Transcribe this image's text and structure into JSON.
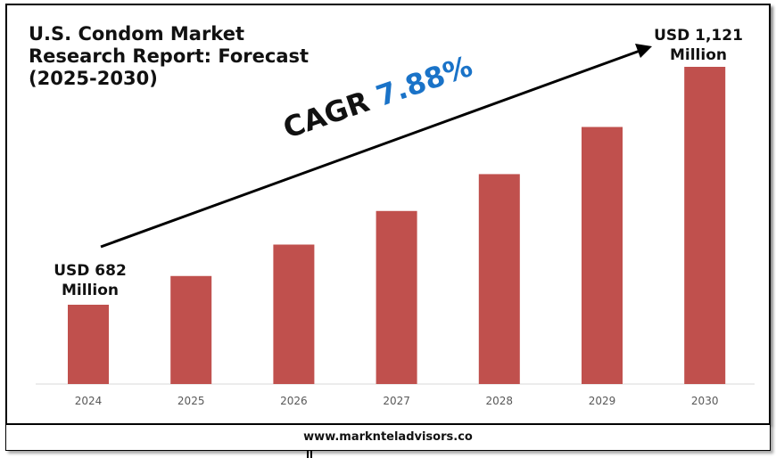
{
  "title": "U.S. Condom Market Research Report: Forecast (2025-2030)",
  "start_annotation": "USD 682 Million",
  "end_annotation": "USD 1,121 Million",
  "cagr_label": "CAGR",
  "cagr_value": "7.88%",
  "footer": "www.marknteladvisors.co",
  "colors": {
    "bar": "#c0504d",
    "cagr": "#1a73c8",
    "axis": "#d9d9d9",
    "arrow": "#000000"
  },
  "chart_data": {
    "type": "bar",
    "categories": [
      "2024",
      "2025",
      "2026",
      "2027",
      "2028",
      "2029",
      "2030"
    ],
    "values": [
      682,
      735,
      793,
      855,
      923,
      1010,
      1121
    ],
    "ylim": [
      600,
      1200
    ],
    "grid": false,
    "unit": "USD Million"
  }
}
